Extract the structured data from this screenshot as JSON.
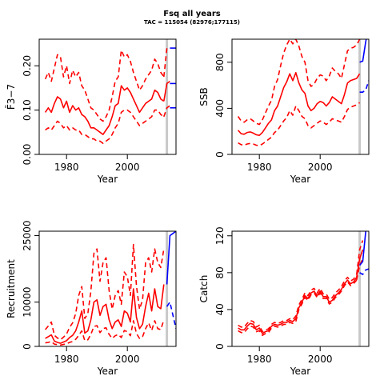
{
  "title": "Fsq all years",
  "subtitle": "TAC = 115054 (82976;177115)",
  "colors": {
    "estimate": "#ff0000",
    "forecast": "#0000ff",
    "marker": "#c8c8c8",
    "axis": "#000000"
  },
  "chart_data": [
    {
      "type": "line",
      "panel": "F",
      "xlabel": "Year",
      "ylabel": "F̄3−7",
      "xlim": [
        1971,
        2016
      ],
      "ylim": [
        0,
        0.26
      ],
      "xticks": [
        "1980",
        "2000"
      ],
      "yticks": [
        "0.00",
        "0.10",
        "0.20"
      ],
      "marker_year": 2013,
      "x": [
        1973,
        1974,
        1975,
        1976,
        1977,
        1978,
        1979,
        1980,
        1981,
        1982,
        1983,
        1984,
        1985,
        1986,
        1987,
        1988,
        1989,
        1990,
        1991,
        1992,
        1993,
        1994,
        1995,
        1996,
        1997,
        1998,
        1999,
        2000,
        2001,
        2002,
        2003,
        2004,
        2005,
        2006,
        2007,
        2008,
        2009,
        2010,
        2011,
        2012
      ],
      "series": [
        {
          "role": "estimate",
          "style": "solid",
          "values": [
            0.095,
            0.105,
            0.095,
            0.115,
            0.13,
            0.125,
            0.105,
            0.12,
            0.095,
            0.11,
            0.1,
            0.105,
            0.09,
            0.085,
            0.075,
            0.06,
            0.06,
            0.055,
            0.05,
            0.045,
            0.055,
            0.065,
            0.085,
            0.11,
            0.115,
            0.155,
            0.145,
            0.15,
            0.14,
            0.125,
            0.11,
            0.095,
            0.105,
            0.115,
            0.12,
            0.125,
            0.145,
            0.14,
            0.125,
            0.12
          ]
        },
        {
          "role": "lower",
          "style": "dashed",
          "values": [
            0.055,
            0.06,
            0.055,
            0.065,
            0.075,
            0.07,
            0.06,
            0.065,
            0.055,
            0.06,
            0.055,
            0.055,
            0.045,
            0.045,
            0.04,
            0.035,
            0.035,
            0.03,
            0.03,
            0.025,
            0.03,
            0.035,
            0.045,
            0.06,
            0.07,
            0.095,
            0.1,
            0.1,
            0.095,
            0.085,
            0.075,
            0.065,
            0.07,
            0.075,
            0.08,
            0.085,
            0.1,
            0.1,
            0.09,
            0.085
          ]
        },
        {
          "role": "upper",
          "style": "dashed",
          "values": [
            0.17,
            0.185,
            0.165,
            0.195,
            0.225,
            0.22,
            0.175,
            0.2,
            0.16,
            0.19,
            0.175,
            0.185,
            0.155,
            0.145,
            0.125,
            0.105,
            0.1,
            0.09,
            0.08,
            0.075,
            0.085,
            0.1,
            0.13,
            0.165,
            0.175,
            0.235,
            0.22,
            0.225,
            0.21,
            0.185,
            0.165,
            0.145,
            0.155,
            0.17,
            0.18,
            0.19,
            0.215,
            0.205,
            0.185,
            0.175
          ]
        }
      ],
      "extension": {
        "x": [
          2012,
          2013,
          2014
        ],
        "series": [
          {
            "role": "estimate",
            "values": [
              0.12,
              0.16,
              0.165
            ]
          },
          {
            "role": "lower",
            "values": [
              0.085,
              0.105,
              0.11
            ]
          },
          {
            "role": "upper",
            "values": [
              0.175,
              0.24,
              0.24
            ]
          }
        ]
      },
      "forecast": {
        "x": [
          2014,
          2016
        ],
        "series": [
          {
            "role": "estimate",
            "style": "solid",
            "values": [
              0.16,
              0.16
            ]
          },
          {
            "role": "upper",
            "style": "solid",
            "values": [
              0.24,
              0.24
            ]
          },
          {
            "role": "lower",
            "style": "solid",
            "values": [
              0.105,
              0.105
            ]
          }
        ]
      }
    },
    {
      "type": "line",
      "panel": "SSB",
      "xlabel": "Year",
      "ylabel": "SSB",
      "xlim": [
        1971,
        2016
      ],
      "ylim": [
        0,
        1000
      ],
      "xticks": [
        "1980",
        "2000"
      ],
      "yticks": [
        "0",
        "400",
        "800"
      ],
      "marker_year": 2013,
      "x": [
        1973,
        1974,
        1975,
        1976,
        1977,
        1978,
        1979,
        1980,
        1981,
        1982,
        1983,
        1984,
        1985,
        1986,
        1987,
        1988,
        1989,
        1990,
        1991,
        1992,
        1993,
        1994,
        1995,
        1996,
        1997,
        1998,
        1999,
        2000,
        2001,
        2002,
        2003,
        2004,
        2005,
        2006,
        2007,
        2008,
        2009,
        2010,
        2011,
        2012,
        2013
      ],
      "series": [
        {
          "role": "estimate",
          "style": "solid",
          "values": [
            210,
            180,
            175,
            190,
            195,
            185,
            170,
            165,
            190,
            230,
            270,
            300,
            380,
            420,
            500,
            580,
            630,
            700,
            640,
            710,
            620,
            560,
            530,
            420,
            380,
            400,
            440,
            460,
            450,
            420,
            450,
            500,
            480,
            460,
            440,
            520,
            620,
            640,
            650,
            660,
            700
          ]
        },
        {
          "role": "lower",
          "style": "dashed",
          "values": [
            100,
            85,
            80,
            90,
            95,
            90,
            80,
            75,
            90,
            110,
            130,
            150,
            190,
            210,
            250,
            290,
            320,
            380,
            340,
            420,
            380,
            330,
            310,
            250,
            230,
            250,
            270,
            290,
            280,
            260,
            280,
            310,
            300,
            290,
            280,
            330,
            390,
            410,
            420,
            430,
            450
          ]
        },
        {
          "role": "upper",
          "style": "dashed",
          "values": [
            330,
            290,
            280,
            300,
            310,
            290,
            270,
            260,
            300,
            360,
            420,
            470,
            590,
            650,
            770,
            880,
            950,
            1000,
            960,
            1000,
            940,
            850,
            800,
            640,
            590,
            610,
            660,
            690,
            680,
            640,
            680,
            750,
            720,
            700,
            660,
            780,
            900,
            920,
            930,
            950,
            1000
          ]
        }
      ],
      "forecast": {
        "x": [
          2013,
          2014,
          2015,
          2016
        ],
        "series": [
          {
            "role": "estimate",
            "style": "solid",
            "values": [
              800,
              810,
              980,
              1100
            ]
          },
          {
            "role": "lower",
            "style": "dashed",
            "values": [
              540,
              540,
              560,
              640
            ]
          },
          {
            "role": "upper",
            "style": "dashed",
            "values": [
              1100,
              1200,
              1300,
              1400
            ]
          }
        ]
      }
    },
    {
      "type": "line",
      "panel": "Recruitment",
      "xlabel": "Year",
      "ylabel": "Recruitment",
      "xlim": [
        1971,
        2016
      ],
      "ylim": [
        0,
        26000
      ],
      "xticks": [
        "1980",
        "2000"
      ],
      "yticks": [
        "0",
        "10000",
        "25000"
      ],
      "marker_year": 2013,
      "x": [
        1973,
        1974,
        1975,
        1976,
        1977,
        1978,
        1979,
        1980,
        1981,
        1982,
        1983,
        1984,
        1985,
        1986,
        1987,
        1988,
        1989,
        1990,
        1991,
        1992,
        1993,
        1994,
        1995,
        1996,
        1997,
        1998,
        1999,
        2000,
        2001,
        2002,
        2003,
        2004,
        2005,
        2006,
        2007,
        2008,
        2009,
        2010,
        2011,
        2012
      ],
      "series": [
        {
          "role": "estimate",
          "style": "solid",
          "values": [
            1800,
            2200,
            2600,
            1200,
            900,
            700,
            1000,
            1300,
            2000,
            2500,
            3500,
            5500,
            8000,
            3000,
            3500,
            6000,
            10000,
            10500,
            7000,
            9000,
            9500,
            6000,
            4000,
            5500,
            6000,
            4500,
            8000,
            7500,
            5500,
            13000,
            6500,
            4000,
            5000,
            9000,
            12000,
            8000,
            13000,
            9000,
            8500,
            14000
          ]
        },
        {
          "role": "lower",
          "style": "dashed",
          "values": [
            800,
            900,
            1100,
            500,
            400,
            300,
            450,
            600,
            900,
            1100,
            1600,
            2500,
            3500,
            1300,
            1500,
            2700,
            4500,
            4700,
            3100,
            4000,
            4200,
            2700,
            1800,
            2400,
            2700,
            2000,
            3600,
            3300,
            2400,
            5800,
            2900,
            1800,
            2200,
            4000,
            5300,
            3600,
            5800,
            4000,
            3800,
            6000
          ]
        },
        {
          "role": "upper",
          "style": "dashed",
          "values": [
            3800,
            4600,
            5500,
            2500,
            1900,
            1500,
            2100,
            2800,
            4300,
            5300,
            7400,
            11500,
            13500,
            6300,
            7400,
            12500,
            21000,
            22000,
            14700,
            18900,
            20000,
            12600,
            8400,
            11500,
            12600,
            9500,
            16800,
            15700,
            11500,
            23000,
            13600,
            8400,
            10500,
            18900,
            20000,
            16800,
            22000,
            18900,
            17800,
            22000
          ]
        }
      ],
      "forecast": {
        "x": [
          2013,
          2014,
          2015,
          2016
        ],
        "series": [
          {
            "role": "estimate",
            "style": "solid",
            "values": [
              14000,
              25000,
              25500,
              26000
            ]
          },
          {
            "role": "lower",
            "style": "dashed",
            "values": [
              9000,
              10000,
              7000,
              4000
            ]
          }
        ]
      }
    },
    {
      "type": "line",
      "panel": "Catch",
      "xlabel": "Year",
      "ylabel": "Catch",
      "xlim": [
        1971,
        2016
      ],
      "ylim": [
        0,
        125
      ],
      "xticks": [
        "1980",
        "2000"
      ],
      "yticks": [
        "0",
        "40",
        "80",
        "120"
      ],
      "marker_year": 2013,
      "x": [
        1973,
        1974,
        1975,
        1976,
        1977,
        1978,
        1979,
        1980,
        1981,
        1982,
        1983,
        1984,
        1985,
        1986,
        1987,
        1988,
        1989,
        1990,
        1991,
        1992,
        1993,
        1994,
        1995,
        1996,
        1997,
        1998,
        1999,
        2000,
        2001,
        2002,
        2003,
        2004,
        2005,
        2006,
        2007,
        2008,
        2009,
        2010,
        2011,
        2012
      ],
      "series": [
        {
          "role": "estimate",
          "style": "solid",
          "values": [
            20,
            18,
            18,
            22,
            25,
            24,
            18,
            20,
            14,
            16,
            17,
            22,
            24,
            23,
            24,
            26,
            26,
            28,
            27,
            30,
            42,
            48,
            55,
            52,
            58,
            60,
            55,
            60,
            54,
            54,
            48,
            50,
            55,
            58,
            62,
            68,
            72,
            68,
            70,
            75
          ]
        },
        {
          "role": "lower",
          "style": "dashed",
          "values": [
            17,
            15,
            15,
            19,
            22,
            21,
            16,
            17,
            12,
            14,
            15,
            20,
            22,
            21,
            22,
            24,
            24,
            26,
            25,
            27,
            40,
            46,
            53,
            50,
            56,
            58,
            53,
            58,
            52,
            52,
            46,
            48,
            53,
            56,
            60,
            66,
            70,
            66,
            68,
            72
          ]
        },
        {
          "role": "upper",
          "style": "dashed",
          "values": [
            23,
            21,
            21,
            25,
            28,
            27,
            21,
            23,
            16,
            18,
            19,
            24,
            26,
            25,
            26,
            28,
            28,
            30,
            29,
            33,
            45,
            51,
            58,
            55,
            61,
            63,
            58,
            63,
            57,
            57,
            51,
            53,
            58,
            61,
            65,
            71,
            75,
            71,
            73,
            78
          ]
        }
      ],
      "extension": {
        "x": [
          2012,
          2013,
          2014
        ],
        "series": [
          {
            "role": "estimate",
            "values": [
              75,
              95,
              105
            ]
          },
          {
            "role": "lower",
            "values": [
              72,
              88,
              95
            ]
          },
          {
            "role": "upper",
            "values": [
              78,
              105,
              115
            ]
          }
        ]
      },
      "forecast": {
        "x": [
          2013,
          2014,
          2015,
          2016
        ],
        "series": [
          {
            "role": "estimate",
            "style": "solid",
            "values": [
              88,
              92,
              125,
              135
            ]
          },
          {
            "role": "upper",
            "style": "dashed",
            "values": [
              80,
              78,
              83,
              84
            ]
          }
        ]
      }
    }
  ]
}
